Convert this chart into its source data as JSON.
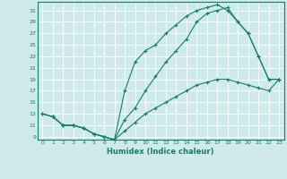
{
  "title": "",
  "xlabel": "Humidex (Indice chaleur)",
  "ylabel": "",
  "bg_color": "#ceeaea",
  "line_color": "#1a7a6e",
  "grid_color": "#b8d8d8",
  "xlim": [
    -0.5,
    23.5
  ],
  "ylim": [
    8.5,
    32.5
  ],
  "yticks": [
    9,
    11,
    13,
    15,
    17,
    19,
    21,
    23,
    25,
    27,
    29,
    31
  ],
  "xticks": [
    0,
    1,
    2,
    3,
    4,
    5,
    6,
    7,
    8,
    9,
    10,
    11,
    12,
    13,
    14,
    15,
    16,
    17,
    18,
    19,
    20,
    21,
    22,
    23
  ],
  "line1_x": [
    0,
    1,
    2,
    3,
    4,
    5,
    6,
    7,
    8,
    9,
    10,
    11,
    12,
    13,
    14,
    15,
    16,
    17,
    18,
    19,
    20,
    21,
    22,
    23
  ],
  "line1_y": [
    13,
    12.5,
    11,
    11,
    10.5,
    9.5,
    9,
    8.5,
    17,
    22,
    24,
    25,
    27,
    28.5,
    30,
    31,
    31.5,
    32,
    31,
    29,
    27,
    23,
    19,
    19
  ],
  "line2_x": [
    0,
    1,
    2,
    3,
    4,
    5,
    6,
    7,
    8,
    9,
    10,
    11,
    12,
    13,
    14,
    15,
    16,
    17,
    18,
    19,
    20,
    21,
    22,
    23
  ],
  "line2_y": [
    13,
    12.5,
    11,
    11,
    10.5,
    9.5,
    9,
    8.5,
    12,
    14,
    17,
    19.5,
    22,
    24,
    26,
    29,
    30.5,
    31,
    31.5,
    29,
    27,
    23,
    19,
    19
  ],
  "line3_x": [
    0,
    1,
    2,
    3,
    4,
    5,
    6,
    7,
    8,
    9,
    10,
    11,
    12,
    13,
    14,
    15,
    16,
    17,
    18,
    19,
    20,
    21,
    22,
    23
  ],
  "line3_y": [
    13,
    12.5,
    11,
    11,
    10.5,
    9.5,
    9,
    8.5,
    10,
    11.5,
    13,
    14,
    15,
    16,
    17,
    18,
    18.5,
    19,
    19,
    18.5,
    18,
    17.5,
    17,
    19
  ]
}
